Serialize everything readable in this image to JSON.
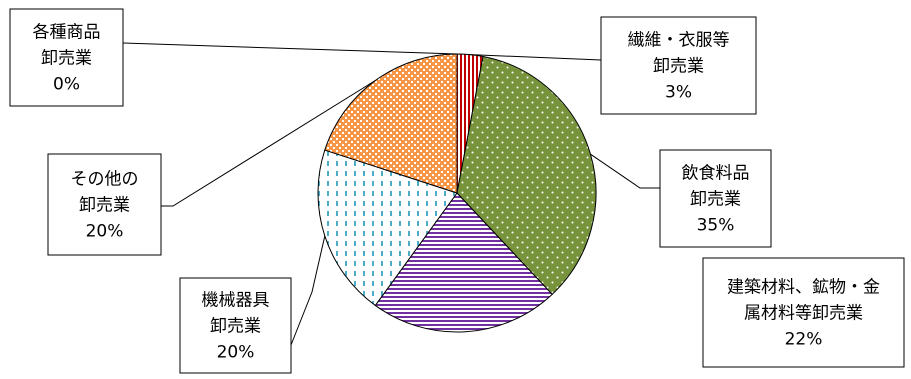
{
  "chart_data": {
    "type": "pie",
    "title": "",
    "legend": "none",
    "slices": [
      {
        "label": "各種商品卸売業",
        "lines": [
          "各種商品",
          "卸売業"
        ],
        "value": 0,
        "display": "0%",
        "color": "#ffffff",
        "pattern": "none"
      },
      {
        "label": "繊維・衣服等卸売業",
        "lines": [
          "繊維・衣服等",
          "卸売業"
        ],
        "value": 3,
        "display": "3%",
        "color": "#c00000",
        "pattern": "vertical-stripes"
      },
      {
        "label": "飲食料品卸売業",
        "lines": [
          "飲食料品",
          "卸売業"
        ],
        "value": 35,
        "display": "35%",
        "color": "#77933c",
        "pattern": "dots"
      },
      {
        "label": "建築材料、鉱物・金属材料等卸売業",
        "lines": [
          "建築材料、鉱物・金",
          "属材料等卸売業"
        ],
        "value": 22,
        "display": "22%",
        "color": "#7030a0",
        "pattern": "horizontal-stripes"
      },
      {
        "label": "機械器具卸売業",
        "lines": [
          "機械器具",
          "卸売業"
        ],
        "value": 20,
        "display": "20%",
        "color": "#4bacc6",
        "pattern": "dashed-vertical"
      },
      {
        "label": "その他の卸売業",
        "lines": [
          "その他の",
          "卸売業"
        ],
        "value": 20,
        "display": "20%",
        "color": "#f79646",
        "pattern": "checker"
      }
    ]
  }
}
